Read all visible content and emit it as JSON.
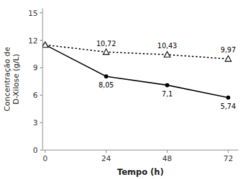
{
  "chart_data": {
    "type": "line",
    "x": [
      0,
      24,
      48,
      72
    ],
    "series": [
      {
        "values": [
          11.5,
          8.05,
          7.1,
          5.74
        ],
        "value_labels": [
          null,
          "8,05",
          "7,1",
          "5,74"
        ],
        "color": "#000000",
        "marker": "circle",
        "line_style": "solid"
      },
      {
        "values": [
          11.5,
          10.72,
          10.43,
          9.97
        ],
        "value_labels": [
          null,
          "10,72",
          "10,43",
          "9,97"
        ],
        "color": "#000000",
        "marker": "triangle",
        "line_style": "dotted"
      }
    ],
    "data_labels": true,
    "xlabel": "Tempo (h)",
    "ylabel": [
      "Concentração de",
      "D-Xilose (g/L)"
    ],
    "xlim": [
      -1,
      76
    ],
    "ylim": [
      0,
      15.5
    ],
    "xticks": [
      0,
      24,
      48,
      72
    ],
    "yticks": [
      0,
      3,
      6,
      9,
      12,
      15
    ],
    "grid": false
  }
}
